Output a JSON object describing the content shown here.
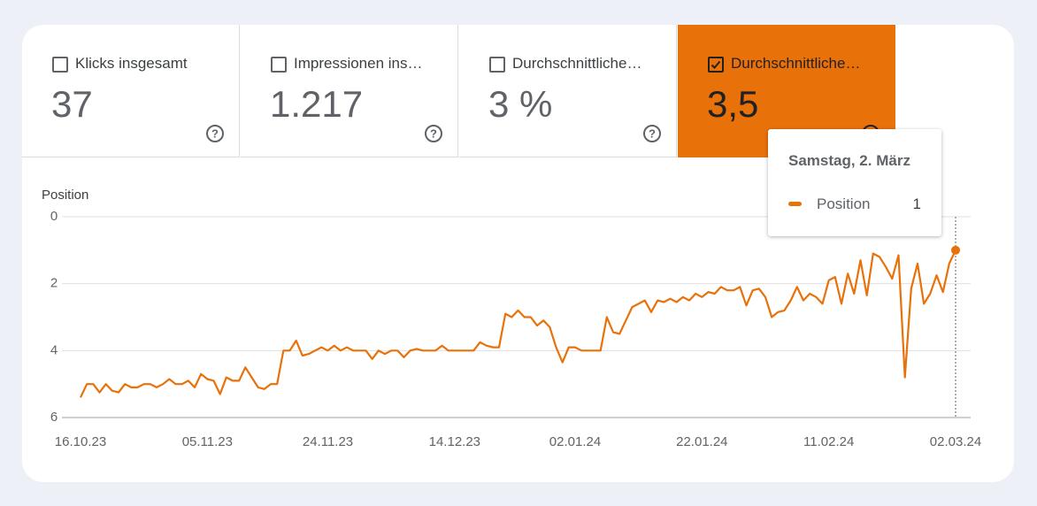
{
  "metrics": [
    {
      "label": "Klicks insgesamt",
      "value": "37",
      "checked": false
    },
    {
      "label": "Impressionen ins…",
      "value": "1.217",
      "checked": false
    },
    {
      "label": "Durchschnittliche…",
      "value": "3 %",
      "checked": false
    },
    {
      "label": "Durchschnittliche…",
      "value": "3,5",
      "checked": true
    }
  ],
  "tooltip": {
    "title": "Samstag, 2. März"
  },
  "chart_data": {
    "type": "line",
    "y_axis_label": "Position",
    "categories": [
      "16.10.23",
      null,
      null,
      null,
      null,
      null,
      null,
      null,
      null,
      null,
      null,
      null,
      null,
      null,
      null,
      null,
      null,
      null,
      null,
      null,
      "05.11.23",
      null,
      null,
      null,
      null,
      null,
      null,
      null,
      null,
      null,
      null,
      null,
      null,
      null,
      null,
      null,
      null,
      null,
      null,
      "24.11.23",
      null,
      null,
      null,
      null,
      null,
      null,
      null,
      null,
      null,
      null,
      null,
      null,
      null,
      null,
      null,
      null,
      null,
      null,
      null,
      "14.12.23",
      null,
      null,
      null,
      null,
      null,
      null,
      null,
      null,
      null,
      null,
      null,
      null,
      null,
      null,
      null,
      null,
      null,
      null,
      "02.01.24",
      null,
      null,
      null,
      null,
      null,
      null,
      null,
      null,
      null,
      null,
      null,
      null,
      null,
      null,
      null,
      null,
      null,
      null,
      null,
      "22.01.24",
      null,
      null,
      null,
      null,
      null,
      null,
      null,
      null,
      null,
      null,
      null,
      null,
      null,
      null,
      null,
      null,
      null,
      null,
      null,
      "11.02.24",
      null,
      null,
      null,
      null,
      null,
      null,
      null,
      null,
      null,
      null,
      null,
      null,
      null,
      null,
      null,
      null,
      null,
      null,
      null,
      "02.03.24"
    ],
    "series": [
      {
        "name": "Position",
        "color": "#e8710a",
        "values": [
          5.4,
          5.0,
          5.0,
          5.25,
          5.0,
          5.2,
          5.25,
          5.0,
          5.1,
          5.1,
          5.0,
          5.0,
          5.1,
          5.0,
          4.85,
          5.0,
          5.0,
          4.9,
          5.1,
          4.7,
          4.85,
          4.9,
          5.3,
          4.8,
          4.9,
          4.9,
          4.5,
          4.8,
          5.1,
          5.15,
          5.0,
          5.0,
          4.0,
          4.0,
          3.7,
          4.15,
          4.1,
          4.0,
          3.9,
          4.0,
          3.85,
          4.0,
          3.9,
          4.0,
          4.0,
          4.0,
          4.25,
          4.0,
          4.1,
          4.0,
          4.0,
          4.2,
          4.0,
          3.95,
          4.0,
          4.0,
          4.0,
          3.85,
          4.0,
          4.0,
          4.0,
          4.0,
          4.0,
          3.75,
          3.85,
          3.9,
          3.9,
          2.9,
          3.0,
          2.8,
          3.0,
          3.0,
          3.25,
          3.1,
          3.3,
          3.9,
          4.35,
          3.9,
          3.9,
          4.0,
          4.0,
          4.0,
          4.0,
          3.0,
          3.45,
          3.5,
          3.1,
          2.7,
          2.6,
          2.5,
          2.85,
          2.5,
          2.55,
          2.45,
          2.55,
          2.4,
          2.5,
          2.3,
          2.4,
          2.25,
          2.3,
          2.1,
          2.2,
          2.2,
          2.1,
          2.65,
          2.2,
          2.15,
          2.4,
          3.0,
          2.85,
          2.8,
          2.5,
          2.1,
          2.5,
          2.3,
          2.4,
          2.6,
          1.9,
          1.8,
          2.6,
          1.7,
          2.3,
          1.3,
          2.35,
          1.1,
          1.2,
          1.5,
          1.85,
          1.15,
          4.8,
          2.15,
          1.4,
          2.6,
          2.3,
          1.75,
          2.25,
          1.4,
          1.0
        ]
      }
    ],
    "ylim": [
      0,
      6
    ],
    "yticks": [
      0,
      2,
      4,
      6
    ],
    "y_inverted": true,
    "grid": true,
    "highlight_index": 138
  }
}
